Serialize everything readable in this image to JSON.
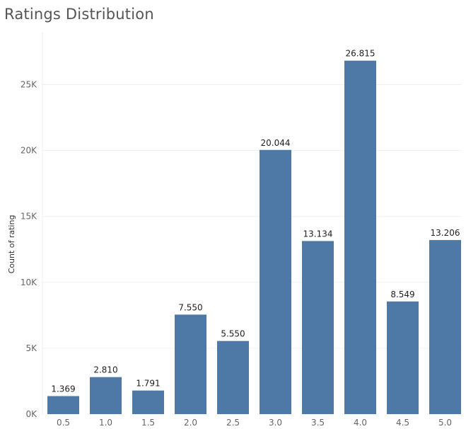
{
  "chart_data": {
    "type": "bar",
    "title": "Ratings Distribution",
    "xlabel": "",
    "ylabel": "Count of rating",
    "categories": [
      "0.5",
      "1.0",
      "1.5",
      "2.0",
      "2.5",
      "3.0",
      "3.5",
      "4.0",
      "4.5",
      "5.0"
    ],
    "values": [
      1369,
      2810,
      1791,
      7550,
      5550,
      20044,
      13134,
      26815,
      8549,
      13206
    ],
    "value_labels": [
      "1.369",
      "2.810",
      "1.791",
      "7.550",
      "5.550",
      "20.044",
      "13.134",
      "26.815",
      "8.549",
      "13.206"
    ],
    "yticks": [
      0,
      5000,
      10000,
      15000,
      20000,
      25000
    ],
    "ytick_labels": [
      "0K",
      "5K",
      "10K",
      "15K",
      "20K",
      "25K"
    ],
    "ylim": [
      0,
      29000
    ],
    "grid": true,
    "bar_color": "#4e79a7"
  }
}
